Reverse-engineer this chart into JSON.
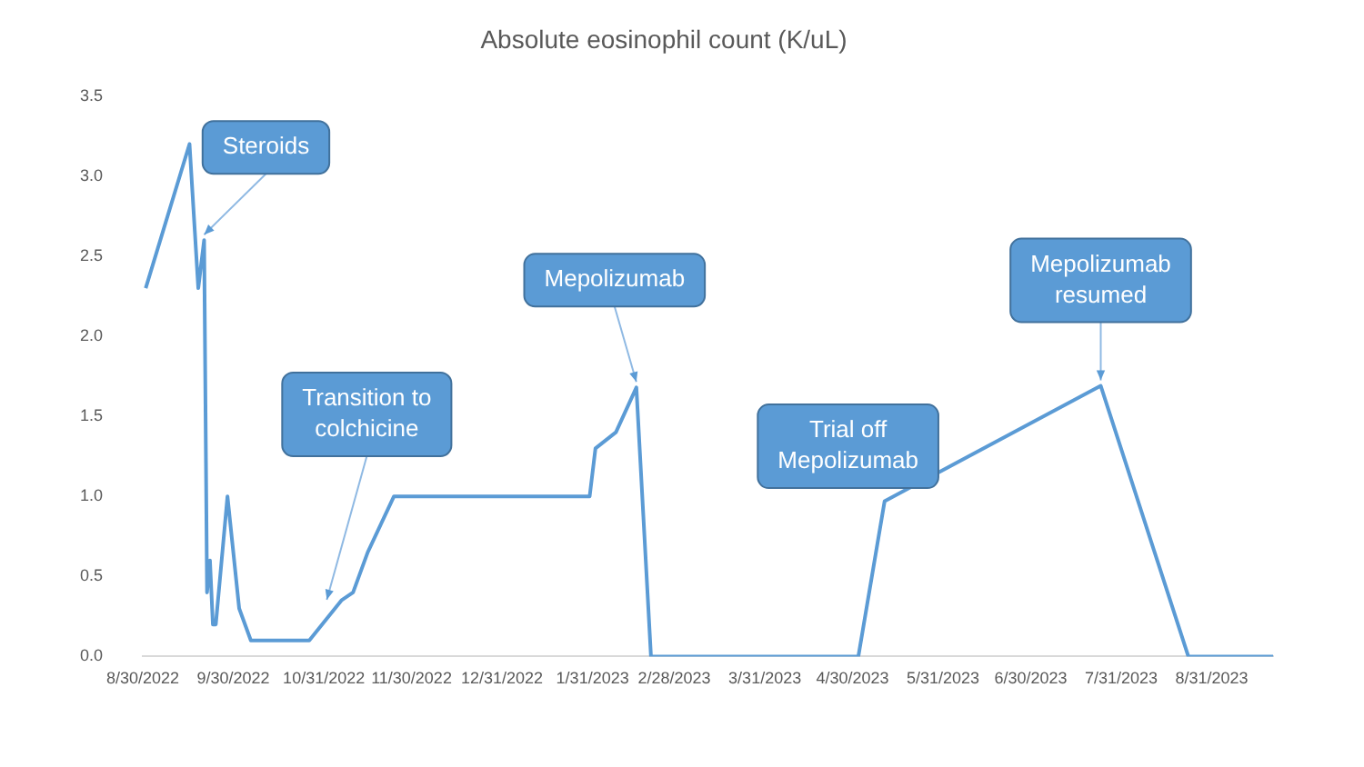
{
  "chart_data": {
    "type": "line",
    "title": "Absolute eosinophil count (K/uL)",
    "x": [
      "2022-08-31",
      "2022-09-15",
      "2022-09-18",
      "2022-09-20",
      "2022-09-21",
      "2022-09-22",
      "2022-09-23",
      "2022-09-24",
      "2022-09-28",
      "2022-10-02",
      "2022-10-06",
      "2022-10-26",
      "2022-11-06",
      "2022-11-10",
      "2022-11-15",
      "2022-11-24",
      "2023-01-30",
      "2023-02-01",
      "2023-02-08",
      "2023-02-15",
      "2023-02-20",
      "2023-05-02",
      "2023-05-11",
      "2023-07-24",
      "2023-08-23",
      "2023-09-21"
    ],
    "series": [
      {
        "color": "#5b9bd5",
        "values": [
          2.3,
          3.2,
          2.3,
          2.6,
          0.4,
          0.6,
          0.2,
          0.2,
          1.0,
          0.3,
          0.1,
          0.1,
          0.35,
          0.4,
          0.65,
          1.0,
          1.0,
          1.3,
          1.4,
          1.68,
          0,
          0,
          0.97,
          1.69,
          0,
          0
        ]
      }
    ],
    "xlim": [
      "2022-08-30",
      "2023-09-21"
    ],
    "xticks": [
      {
        "value": "2022-08-30",
        "label": "8/30/2022"
      },
      {
        "value": "2022-09-30",
        "label": "9/30/2022"
      },
      {
        "value": "2022-10-31",
        "label": "10/31/2022"
      },
      {
        "value": "2022-11-30",
        "label": "11/30/2022"
      },
      {
        "value": "2022-12-31",
        "label": "12/31/2022"
      },
      {
        "value": "2023-01-31",
        "label": "1/31/2023"
      },
      {
        "value": "2023-02-28",
        "label": "2/28/2023"
      },
      {
        "value": "2023-03-31",
        "label": "3/31/2023"
      },
      {
        "value": "2023-04-30",
        "label": "4/30/2023"
      },
      {
        "value": "2023-05-31",
        "label": "5/31/2023"
      },
      {
        "value": "2023-06-30",
        "label": "6/30/2023"
      },
      {
        "value": "2023-07-31",
        "label": "7/31/2023"
      },
      {
        "value": "2023-08-31",
        "label": "8/31/2023"
      }
    ],
    "ylim": [
      0,
      3.5
    ],
    "yticks": [
      {
        "value": 0,
        "label": "0.0"
      },
      {
        "value": 0.5,
        "label": "0.5"
      },
      {
        "value": 1,
        "label": "1.0"
      },
      {
        "value": 1.5,
        "label": "1.5"
      },
      {
        "value": 2,
        "label": "2.0"
      },
      {
        "value": 2.5,
        "label": "2.5"
      },
      {
        "value": 3,
        "label": "3.0"
      },
      {
        "value": 3.5,
        "label": "3.5"
      }
    ],
    "grid": false,
    "legend": false,
    "marker": "none",
    "line_style": "solid",
    "annotations": [
      {
        "text": "Steroids",
        "x": "2022-09-20",
        "y": 2.6
      },
      {
        "text": "Transition to colchicine",
        "x": "2022-11-01",
        "y": 0.32
      },
      {
        "text": "Mepolizumab",
        "x": "2023-02-15",
        "y": 1.68
      },
      "Trial off Mepolizumab",
      {
        "text": "Mepolizumab resumed",
        "x": "2023-07-24",
        "y": 1.69
      }
    ]
  }
}
